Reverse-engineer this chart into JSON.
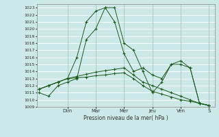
{
  "xlabel": "Pression niveau de la mer( hPa )",
  "ylim": [
    1009,
    1023.5
  ],
  "yticks": [
    1009,
    1010,
    1011,
    1012,
    1013,
    1014,
    1015,
    1016,
    1017,
    1018,
    1019,
    1020,
    1021,
    1022,
    1023
  ],
  "background_color": "#cce8e8",
  "grid_color": "#ffffff",
  "line_color": "#1a5c1a",
  "day_labels": [
    "Dim",
    "Mar",
    "Mer",
    "Jeu",
    "Ven",
    "S"
  ],
  "day_positions": [
    1.5,
    3.0,
    4.5,
    6.0,
    7.5,
    9.0
  ],
  "xlim": [
    -0.1,
    9.3
  ],
  "lines": [
    {
      "x": [
        0,
        0.5,
        1.0,
        1.5,
        2.0,
        2.5,
        3.0,
        3.5,
        4.0,
        4.5,
        5.0,
        5.5,
        6.0,
        6.5,
        7.0,
        7.5,
        8.0,
        8.5,
        9.0
      ],
      "y": [
        1011.0,
        1010.5,
        1012.0,
        1012.5,
        1013.0,
        1018.5,
        1020.0,
        1023.0,
        1023.0,
        1018.0,
        1017.0,
        1014.0,
        1011.0,
        1012.5,
        1015.0,
        1015.0,
        1014.5,
        1009.5,
        1009.2
      ]
    },
    {
      "x": [
        0,
        0.5,
        1.0,
        1.5,
        2.0,
        2.5,
        3.0,
        3.5,
        4.0,
        4.5,
        5.0,
        5.5,
        6.0,
        6.5,
        7.0,
        7.5,
        8.0,
        8.5,
        9.0
      ],
      "y": [
        1011.5,
        1012.0,
        1012.5,
        1013.0,
        1016.0,
        1021.0,
        1022.5,
        1023.0,
        1021.0,
        1016.5,
        1014.0,
        1014.5,
        1013.5,
        1013.0,
        1015.0,
        1015.5,
        1014.5,
        1009.5,
        1009.2
      ]
    },
    {
      "x": [
        0,
        0.5,
        1.0,
        1.5,
        2.0,
        2.5,
        3.0,
        3.5,
        4.0,
        4.5,
        5.0,
        5.5,
        6.0,
        6.5,
        7.0,
        7.5,
        8.0,
        8.5,
        9.0
      ],
      "y": [
        1011.5,
        1012.0,
        1012.5,
        1013.0,
        1013.3,
        1013.6,
        1013.9,
        1014.1,
        1014.3,
        1014.5,
        1013.5,
        1012.5,
        1012.0,
        1011.5,
        1011.0,
        1010.5,
        1010.0,
        1009.5,
        1009.2
      ]
    },
    {
      "x": [
        0,
        0.5,
        1.0,
        1.5,
        2.0,
        2.5,
        3.0,
        3.5,
        4.0,
        4.5,
        5.0,
        5.5,
        6.0,
        6.5,
        7.0,
        7.5,
        8.0,
        8.5,
        9.0
      ],
      "y": [
        1011.5,
        1012.0,
        1012.5,
        1013.0,
        1013.1,
        1013.2,
        1013.4,
        1013.5,
        1013.7,
        1013.8,
        1013.0,
        1012.0,
        1011.2,
        1010.8,
        1010.4,
        1010.0,
        1009.8,
        1009.5,
        1009.2
      ]
    }
  ]
}
